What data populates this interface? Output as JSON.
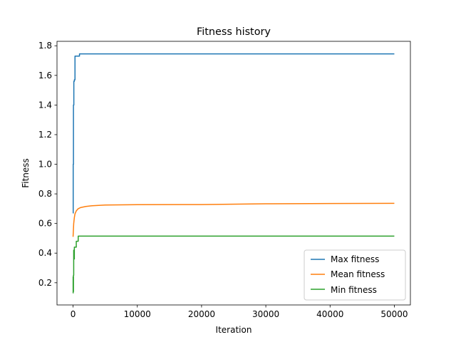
{
  "chart_data": {
    "type": "line",
    "title": "Fitness history",
    "xlabel": "Iteration",
    "ylabel": "Fitness",
    "xlim": [
      -2500,
      52500
    ],
    "ylim": [
      0.05,
      1.83
    ],
    "xticks": [
      0,
      10000,
      20000,
      30000,
      40000,
      50000
    ],
    "yticks": [
      0.2,
      0.4,
      0.6,
      0.8,
      1.0,
      1.2,
      1.4,
      1.6,
      1.8
    ],
    "ytick_labels": [
      "0.2",
      "0.4",
      "0.6",
      "0.8",
      "1.0",
      "1.2",
      "1.4",
      "1.6",
      "1.8"
    ],
    "grid": false,
    "legend": "lower-right",
    "series": [
      {
        "name": "Max fitness",
        "color": "#1f77b4",
        "x": [
          0,
          20,
          20,
          60,
          60,
          120,
          120,
          200,
          200,
          300,
          300,
          400,
          400,
          1000,
          1000,
          50000
        ],
        "y": [
          0.67,
          0.67,
          1.0,
          1.0,
          1.4,
          1.4,
          1.56,
          1.56,
          1.57,
          1.57,
          1.73,
          1.73,
          1.73,
          1.73,
          1.745,
          1.745
        ]
      },
      {
        "name": "Mean fitness",
        "color": "#ff7f0e",
        "x": [
          0,
          100,
          200,
          300,
          500,
          800,
          1200,
          2000,
          3000,
          5000,
          10000,
          20000,
          30000,
          40000,
          50000
        ],
        "y": [
          0.51,
          0.6,
          0.64,
          0.665,
          0.685,
          0.7,
          0.708,
          0.715,
          0.72,
          0.725,
          0.727,
          0.728,
          0.733,
          0.735,
          0.736
        ]
      },
      {
        "name": "Min fitness",
        "color": "#2ca02c",
        "x": [
          0,
          10,
          10,
          30,
          30,
          60,
          60,
          100,
          100,
          150,
          150,
          200,
          200,
          300,
          300,
          500,
          500,
          800,
          800,
          50000
        ],
        "y": [
          0.13,
          0.13,
          0.24,
          0.24,
          0.14,
          0.14,
          0.25,
          0.25,
          0.42,
          0.42,
          0.36,
          0.36,
          0.44,
          0.44,
          0.44,
          0.44,
          0.48,
          0.48,
          0.515,
          0.515
        ]
      }
    ]
  }
}
